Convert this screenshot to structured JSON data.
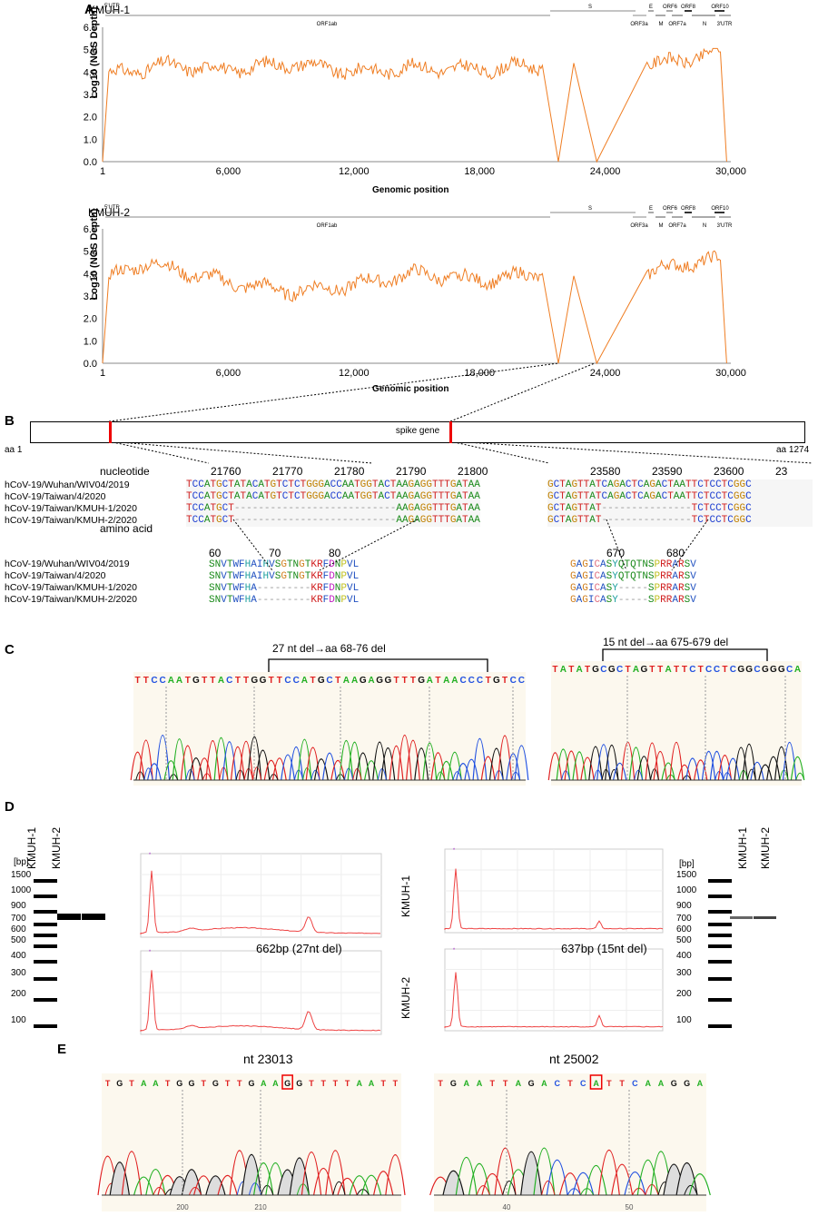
{
  "panels": {
    "A": "A",
    "B": "B",
    "C": "C",
    "D": "D",
    "E": "E"
  },
  "panelA": {
    "plots": [
      {
        "title": "KMUH-1"
      },
      {
        "title": "KMUH-2"
      }
    ],
    "ylabel": "Log10 (NGS Depth)",
    "xlabel": "Genomic position",
    "yticks": [
      "6.0",
      "5.0",
      "4.0",
      "3.0",
      "2.0",
      "1.0",
      "0.0"
    ],
    "xticks": [
      "1",
      "6,000",
      "12,000",
      "18,000",
      "24,000",
      "30,000"
    ],
    "genes": {
      "utr5": "5'UTR",
      "orf1ab": "ORF1ab",
      "s": "S",
      "e": "E",
      "m": "M",
      "orf3a": "ORF3a",
      "orf6": "ORF6",
      "orf7a": "ORF7a",
      "orf8": "ORF8",
      "n": "N",
      "orf10": "ORF10",
      "utr3": "3'UTR"
    }
  },
  "chart_data": [
    {
      "type": "line",
      "title": "KMUH-1",
      "xlabel": "Genomic position",
      "ylabel": "Log10 (NGS Depth)",
      "xlim": [
        1,
        30000
      ],
      "ylim": [
        0,
        6
      ],
      "series": [
        {
          "name": "KMUH-1",
          "x": [
            1,
            300,
            3000,
            6000,
            9000,
            12000,
            15000,
            18000,
            21000,
            21765,
            22500,
            23595,
            26000,
            28000,
            29500,
            29800
          ],
          "values": [
            0,
            3.9,
            4.3,
            4.1,
            4.4,
            4.0,
            4.2,
            4.1,
            4.3,
            0,
            4.4,
            0,
            4.3,
            4.6,
            4.9,
            0
          ]
        }
      ]
    },
    {
      "type": "line",
      "title": "KMUH-2",
      "xlabel": "Genomic position",
      "ylabel": "Log10 (NGS Depth)",
      "xlim": [
        1,
        30000
      ],
      "ylim": [
        0,
        6
      ],
      "series": [
        {
          "name": "KMUH-2",
          "x": [
            1,
            300,
            2000,
            6000,
            9000,
            12000,
            15000,
            18000,
            21000,
            21765,
            22500,
            23595,
            26000,
            28000,
            29500,
            29800
          ],
          "values": [
            0,
            3.8,
            4.5,
            3.6,
            3.2,
            3.5,
            4.0,
            3.7,
            4.0,
            0,
            3.9,
            0,
            4.0,
            4.5,
            4.6,
            0
          ]
        }
      ]
    }
  ],
  "panelB": {
    "spike": "spike gene",
    "aa1": "aa 1",
    "aa1274": "aa 1274",
    "nt_header": "nucleotide",
    "aa_header": "amino acid",
    "nt_ticks1": [
      "21760",
      "21770",
      "21780",
      "21790",
      "21800"
    ],
    "nt_ticks2": [
      "23580",
      "23590",
      "23600",
      "23"
    ],
    "aa_ticks1": [
      "60",
      "70",
      "80"
    ],
    "aa_ticks2": [
      "670",
      "680"
    ],
    "strains": [
      "hCoV-19/Wuhan/WIV04/2019",
      "hCoV-19/Taiwan/4/2020",
      "hCoV-19/Taiwan/KMUH-1/2020",
      "hCoV-19/Taiwan/KMUH-2/2020"
    ],
    "nt_seq1": [
      "TCCATGCTATACATGTCTCTGGGACCAATGGTACTAAGAGGTTTGATAA",
      "TCCATGCTATACATGTCTCTGGGACCAATGGTACTAAGAGGTTTGATAA",
      "TCCATGCT---------------------------AAGAGGTTTGATAA",
      "TCCATGCT---------------------------AAGAGGTTTGATAA"
    ],
    "nt_seq2": [
      "GCTAGTTATCAGACTCAGACTAATTCTCCTCGGC",
      "GCTAGTTATCAGACTCAGACTAATTCTCCTCGGC",
      "GCTAGTTAT---------------TCTCCTCGGC",
      "GCTAGTTAT---------------TCTCCTCGGC"
    ],
    "aa_seq1": [
      "SNVTWFHAIHVSGTNGTKRFDNPVL",
      "SNVTWFHAIHVSGTNGTKRFDNPVL",
      "SNVTWFHA---------KRFDNPVL",
      "SNVTWFHA---------KRFDNPVL"
    ],
    "aa_seq2": [
      "GAGICASYQTQTNSPRRARSV",
      "GAGICASYQTQTNSPRRARSV",
      "GAGICASY-----SPRRARSV",
      "GAGICASY-----SPRRARSV"
    ]
  },
  "panelC": {
    "left_label": "27 nt del→aa 68-76 del",
    "right_label": "15 nt del→aa 675-679 del",
    "left_seq": "TTCCAATGTTACTTGGTTCCATGCTAAGAGGTTTGATAACCCTGTCC",
    "right_seq": "TATATGCGCTAGTTATTCTCCTCGGCGGGCA"
  },
  "panelD": {
    "bp": "[bp]",
    "ladder": [
      "1500",
      "1000",
      "900",
      "700",
      "600",
      "500",
      "400",
      "300",
      "200",
      "100"
    ],
    "lanes": [
      "KMUH-1",
      "KMUH-2"
    ],
    "row_labels": [
      "KMUH-1",
      "KMUH-2"
    ],
    "band_left": "662bp (27nt del)",
    "band_right": "637bp (15nt del)"
  },
  "panelE": {
    "left_title": "nt 23013",
    "right_title": "nt 25002",
    "left_seq": "TGTAATGGTGTTGAAGGTTTTAATT",
    "right_seq": "TGAATTAGACTCATTCAAGGA",
    "left_ticks": [
      "200",
      "210"
    ],
    "right_ticks": [
      "40",
      "50"
    ]
  }
}
